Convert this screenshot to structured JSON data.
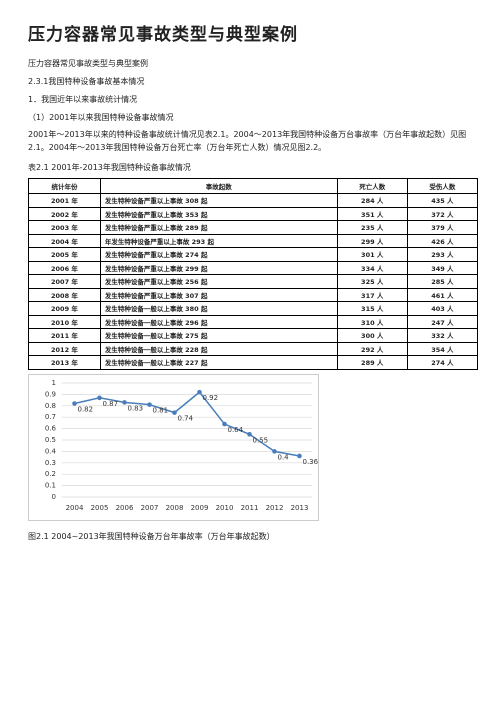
{
  "header": {
    "title": "压力容器常见事故类型与典型案例"
  },
  "lines": [
    "压力容器常见事故类型与典型案例",
    "2.3.1我国特种设备事故基本情况",
    "1．我国近年以来事故统计情况",
    "（1）2001年以来我国特种设备事故情况"
  ],
  "paragraph": "2001年～2013年以来的特种设备事故统计情况见表2.1。2004～2013年我国特种设备万台事故率（万台年事故起数）见图2.1。2004年～2013年我国特种设备万台死亡率（万台年死亡人数）情况见图2.2。",
  "table": {
    "caption": "表2.1 2001年-2013年我国特种设备事故情况",
    "header": [
      "统计年份",
      "事故起数",
      "死亡人数",
      "受伤人数"
    ],
    "rows": [
      [
        "2001 年",
        "发生特种设备严重以上事故 308 起",
        "284 人",
        "435 人"
      ],
      [
        "2002 年",
        "发生特种设备严重以上事故 353 起",
        "351 人",
        "372 人"
      ],
      [
        "2003 年",
        "发生特种设备严重以上事故 289 起",
        "235 人",
        "379 人"
      ],
      [
        "2004 年",
        "年发生特种设备严重以上事故 293 起",
        "299 人",
        "426 人"
      ],
      [
        "2005 年",
        "发生特种设备严重以上事故 274 起",
        "301 人",
        "293 人"
      ],
      [
        "2006 年",
        "发生特种设备严重以上事故 299 起",
        "334 人",
        "349 人"
      ],
      [
        "2007 年",
        "发生特种设备严重以上事故 256 起",
        "325 人",
        "285 人"
      ],
      [
        "2008 年",
        "发生特种设备严重以上事故 307 起",
        "317 人",
        "461 人"
      ],
      [
        "2009 年",
        "发生特种设备一般以上事故 380 起",
        "315 人",
        "403 人"
      ],
      [
        "2010 年",
        "发生特种设备一般以上事故 296 起",
        "310 人",
        "247 人"
      ],
      [
        "2011 年",
        "发生特种设备一般以上事故 275 起",
        "300 人",
        "332 人"
      ],
      [
        "2012 年",
        "发生特种设备一般以上事故 228 起",
        "292 人",
        "354 人"
      ],
      [
        "2013 年",
        "发生特种设备一般以上事故 227 起",
        "289 人",
        "274 人"
      ]
    ]
  },
  "chart": {
    "type": "line",
    "categories": [
      "2004",
      "2005",
      "2006",
      "2007",
      "2008",
      "2009",
      "2010",
      "2011",
      "2012",
      "2013"
    ],
    "values": [
      0.82,
      0.87,
      0.83,
      0.81,
      0.74,
      0.92,
      0.64,
      0.55,
      0.4,
      0.36
    ],
    "color": "#4a7ebb",
    "ylim": [
      0,
      1
    ],
    "yticks": [
      0,
      0.1,
      0.2,
      0.3,
      0.4,
      0.5,
      0.6,
      0.7,
      0.8,
      0.9,
      1
    ],
    "grid": true
  },
  "figure_caption": "图2.1 2004~2013年我国特种设备万台年事故率（万台年事故起数）"
}
